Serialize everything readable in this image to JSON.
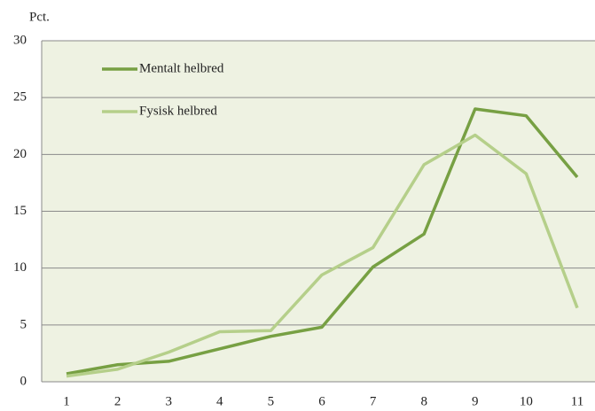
{
  "chart_data": {
    "type": "line",
    "y_label": "Pct.",
    "categories": [
      "1",
      "2",
      "3",
      "4",
      "5",
      "6",
      "7",
      "8",
      "9",
      "10",
      "11"
    ],
    "series": [
      {
        "name": "Mentalt helbred",
        "color": "#77a043",
        "values": [
          0.7,
          1.5,
          1.8,
          2.9,
          4.0,
          4.8,
          10.1,
          13.0,
          24.0,
          23.4,
          18.0
        ]
      },
      {
        "name": "Fysisk helbred",
        "color": "#b5cf8a",
        "values": [
          0.5,
          1.1,
          2.6,
          4.4,
          4.5,
          9.4,
          11.8,
          19.1,
          21.7,
          18.3,
          6.5
        ]
      }
    ],
    "ylim": [
      0,
      30
    ],
    "yticks": [
      0,
      5,
      10,
      15,
      20,
      25,
      30
    ],
    "grid": true,
    "legend": "top-left"
  }
}
